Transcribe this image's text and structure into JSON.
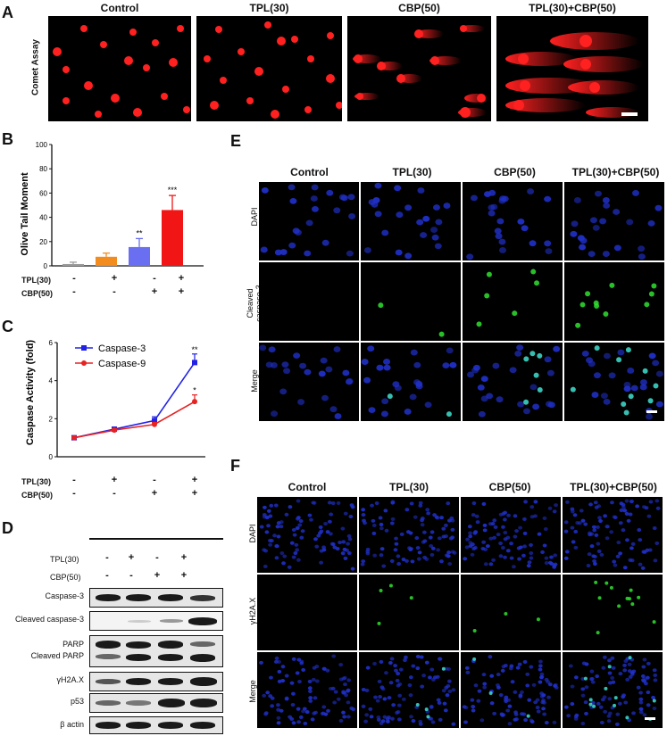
{
  "panel_letters": {
    "A": "A",
    "B": "B",
    "C": "C",
    "D": "D",
    "E": "E",
    "F": "F"
  },
  "groups": [
    "Control",
    "TPL(30)",
    "CBP(50)",
    "TPL(30)+CBP(50)"
  ],
  "panelA": {
    "row_label": "Comet Assay"
  },
  "treatments": {
    "tpl_label": "TPL(30)",
    "cbp_label": "CBP(50)",
    "tpl": [
      "-",
      "+",
      "-",
      "+"
    ],
    "cbp": [
      "-",
      "-",
      "+",
      "+"
    ]
  },
  "panelB": {
    "chart_data": {
      "type": "bar",
      "categories": [
        "Control",
        "TPL(30)",
        "CBP(50)",
        "TPL(30)+CBP(50)"
      ],
      "values": [
        1.5,
        7.5,
        15.5,
        46
      ],
      "errors": [
        1.5,
        3,
        7,
        12
      ],
      "significance": [
        "",
        "",
        "**",
        "***"
      ],
      "ylabel": "Olive Tail Moment",
      "ylim": [
        0,
        100
      ],
      "yticks": [
        "0",
        "20",
        "40",
        "60",
        "80",
        "100"
      ],
      "colors": [
        "#9a9a9a",
        "#f28c1f",
        "#6a6ef0",
        "#f21515"
      ]
    }
  },
  "panelC": {
    "chart_data": {
      "type": "line",
      "categories": [
        "Control",
        "TPL(30)",
        "CBP(50)",
        "TPL(30)+CBP(50)"
      ],
      "series": [
        {
          "name": "Caspase-3",
          "values": [
            1,
            1.45,
            1.9,
            4.95
          ],
          "errors": [
            0.05,
            0.1,
            0.2,
            0.45
          ],
          "color": "#2222e6",
          "marker": "square",
          "sig": [
            "",
            "",
            "",
            "**"
          ]
        },
        {
          "name": "Caspase-9",
          "values": [
            1,
            1.4,
            1.7,
            2.9
          ],
          "errors": [
            0.05,
            0.08,
            0.1,
            0.35
          ],
          "color": "#e62222",
          "marker": "circle",
          "sig": [
            "",
            "",
            "",
            "*"
          ]
        }
      ],
      "ylabel": "Caspase Activity (fold)",
      "ylim": [
        0,
        6
      ],
      "yticks": [
        "0",
        "2",
        "4",
        "6"
      ],
      "legend": "top-left"
    }
  },
  "panelD": {
    "blots": [
      "Caspase-3",
      "Cleaved caspase-3",
      "PARP",
      "Cleaved PARP",
      "γH2A.X",
      "p53",
      "β actin"
    ]
  },
  "panelE": {
    "rows": [
      "DAPI",
      "Cleaved caspase-3",
      "Merge"
    ]
  },
  "panelF": {
    "rows": [
      "DAPI",
      "γH2A.X",
      "Merge"
    ]
  },
  "colors": {
    "comet": "#ff2020",
    "dapi": "#2030c8",
    "green": "#30e030"
  }
}
